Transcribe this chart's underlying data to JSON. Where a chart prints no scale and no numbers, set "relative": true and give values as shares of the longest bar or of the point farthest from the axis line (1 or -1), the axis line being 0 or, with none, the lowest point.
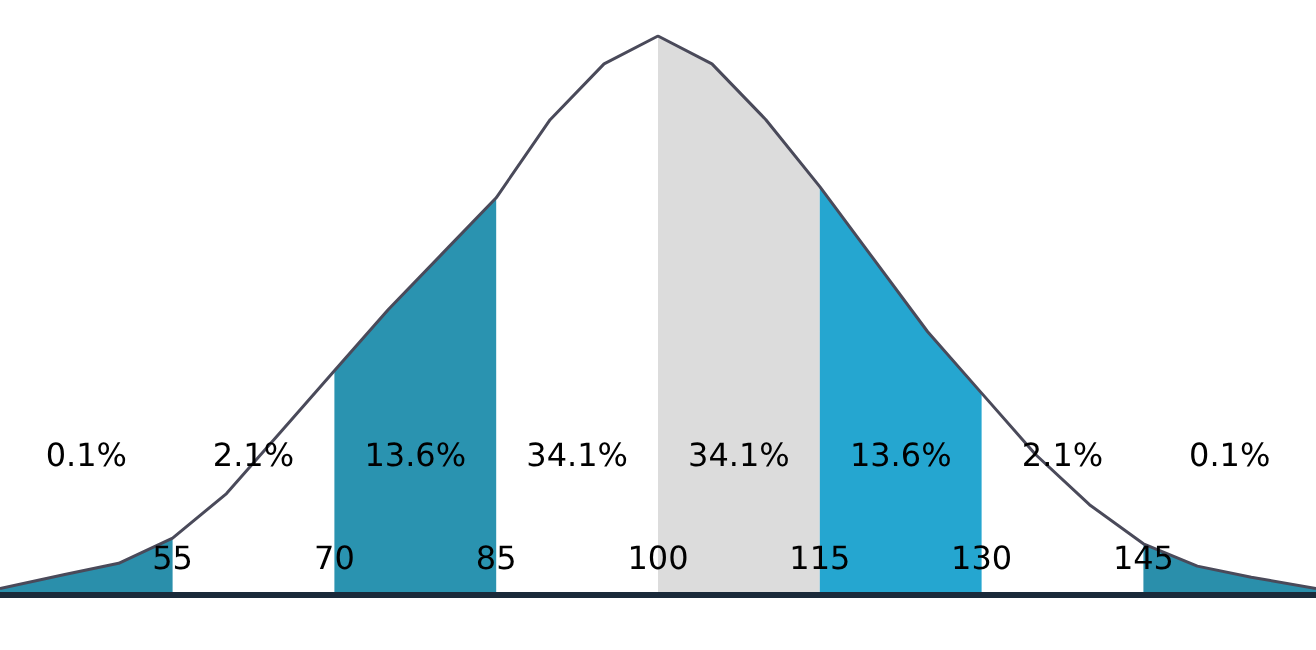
{
  "chart_data": {
    "type": "area",
    "relative": true,
    "xlim": [
      39,
      161
    ],
    "xticks": [
      55,
      70,
      85,
      100,
      115,
      130,
      145
    ],
    "grid": false,
    "series": [
      {
        "color": "#2a8fab",
        "x": [
          39,
          45,
          50,
          55
        ],
        "values": [
          0.01,
          0.035,
          0.055,
          0.1
        ]
      },
      {
        "color": "#2a93b0",
        "x": [
          70,
          75,
          80,
          85
        ],
        "values": [
          0.4,
          0.51,
          0.61,
          0.71
        ]
      },
      {
        "color": "#dcdcdc",
        "x": [
          100,
          105,
          110,
          115
        ],
        "values": [
          1,
          0.95,
          0.85,
          0.73
        ]
      },
      {
        "color": "#25a6d0",
        "x": [
          115,
          120,
          125,
          130
        ],
        "values": [
          0.73,
          0.6,
          0.47,
          0.36
        ]
      },
      {
        "color": "#2a8fab",
        "x": [
          145,
          150,
          155,
          161
        ],
        "values": [
          0.09,
          0.05,
          0.03,
          0.01
        ]
      },
      {
        "type": "line",
        "color": "#4a4a5a",
        "x": [
          39,
          45,
          50,
          55,
          60,
          65,
          70,
          75,
          80,
          85,
          90,
          95,
          100,
          105,
          110,
          115,
          120,
          125,
          130,
          135,
          140,
          145,
          150,
          155,
          161
        ],
        "values": [
          0.01,
          0.035,
          0.055,
          0.1,
          0.18,
          0.29,
          0.4,
          0.51,
          0.61,
          0.71,
          0.85,
          0.95,
          1,
          0.95,
          0.85,
          0.73,
          0.6,
          0.47,
          0.36,
          0.25,
          0.16,
          0.09,
          0.05,
          0.03,
          0.01
        ]
      }
    ],
    "annotations": [
      "0.1%",
      "2.1%",
      "13.6%",
      "34.1%",
      "34.1%",
      "13.6%",
      "2.1%",
      "0.1%"
    ]
  }
}
